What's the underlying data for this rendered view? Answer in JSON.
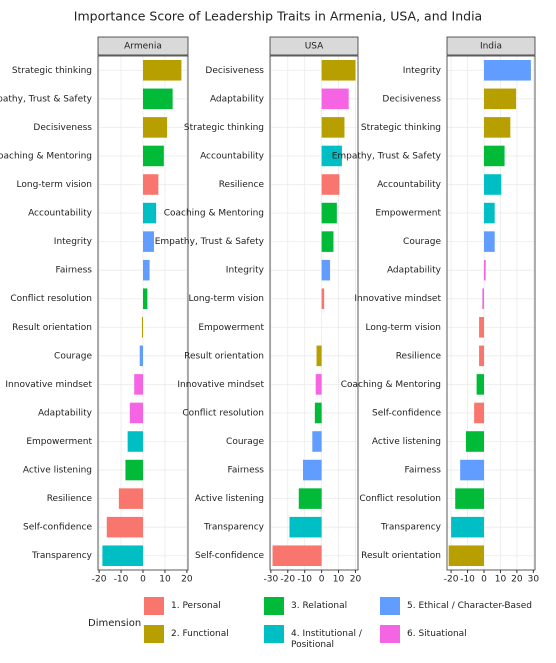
{
  "title": "Importance Score of Leadership Traits in Armenia, USA, and India",
  "legend": {
    "title": "Dimension",
    "entries": [
      {
        "name": "1. Personal",
        "color": "#F8766D"
      },
      {
        "name": "2. Functional",
        "color": "#B79F00"
      },
      {
        "name": "3. Relational",
        "color": "#00BA38"
      },
      {
        "name": "4. Institutional / Positional",
        "color": "#00BFC4"
      },
      {
        "name": "5. Ethical / Character-Based",
        "color": "#619CFF"
      },
      {
        "name": "6. Situational",
        "color": "#F564E3"
      }
    ]
  },
  "chart_data": [
    {
      "type": "bar",
      "orientation": "horizontal",
      "title": "Armenia",
      "grid": true,
      "categories": [
        "Strategic thinking",
        "Empathy, Trust & Safety",
        "Decisiveness",
        "Coaching & Mentoring",
        "Long-term vision",
        "Accountability",
        "Integrity",
        "Fairness",
        "Conflict resolution",
        "Result orientation",
        "Courage",
        "Innovative mindset",
        "Adaptability",
        "Empowerment",
        "Active listening",
        "Resilience",
        "Self-confidence",
        "Transparency"
      ],
      "values": [
        17.5,
        13.5,
        11,
        9.5,
        7,
        6,
        5,
        3,
        2,
        -0.5,
        -1.5,
        -4,
        -6,
        -7,
        -8,
        -11,
        -16.5,
        -18.5
      ],
      "colors": [
        "#B79F00",
        "#00BA38",
        "#B79F00",
        "#00BA38",
        "#F8766D",
        "#00BFC4",
        "#619CFF",
        "#619CFF",
        "#00BA38",
        "#B79F00",
        "#619CFF",
        "#F564E3",
        "#F564E3",
        "#00BFC4",
        "#00BA38",
        "#F8766D",
        "#F8766D",
        "#00BFC4"
      ],
      "xlim": [
        -20.5,
        20.5
      ],
      "xticks": [
        -20,
        -10,
        0,
        10,
        20
      ]
    },
    {
      "type": "bar",
      "orientation": "horizontal",
      "title": "USA",
      "grid": true,
      "categories": [
        "Decisiveness",
        "Adaptability",
        "Strategic thinking",
        "Accountability",
        "Resilience",
        "Coaching & Mentoring",
        "Empathy, Trust & Safety",
        "Integrity",
        "Long-term vision",
        "Empowerment",
        "Result orientation",
        "Innovative mindset",
        "Conflict resolution",
        "Courage",
        "Fairness",
        "Active listening",
        "Transparency",
        "Self-confidence"
      ],
      "values": [
        20,
        16,
        13.5,
        12,
        10.5,
        9,
        7,
        5,
        1.5,
        0,
        -3,
        -3.5,
        -4,
        -5.5,
        -11,
        -13.5,
        -19,
        -29
      ],
      "colors": [
        "#B79F00",
        "#F564E3",
        "#B79F00",
        "#00BFC4",
        "#F8766D",
        "#00BA38",
        "#00BA38",
        "#619CFF",
        "#F8766D",
        "#00BFC4",
        "#B79F00",
        "#F564E3",
        "#00BA38",
        "#619CFF",
        "#619CFF",
        "#00BA38",
        "#00BFC4",
        "#F8766D"
      ],
      "xlim": [
        -30.5,
        21.5
      ],
      "xticks": [
        -30,
        -20,
        -10,
        0,
        10,
        20
      ]
    },
    {
      "type": "bar",
      "orientation": "horizontal",
      "title": "India",
      "grid": true,
      "categories": [
        "Integrity",
        "Decisiveness",
        "Strategic thinking",
        "Empathy, Trust & Safety",
        "Accountability",
        "Empowerment",
        "Courage",
        "Adaptability",
        "Innovative mindset",
        "Long-term vision",
        "Resilience",
        "Coaching & Mentoring",
        "Self-confidence",
        "Active listening",
        "Fairness",
        "Conflict resolution",
        "Transparency",
        "Result orientation"
      ],
      "values": [
        28.5,
        19.5,
        16,
        12.5,
        10.5,
        6.5,
        6.5,
        1,
        -1,
        -3,
        -3,
        -4.5,
        -6,
        -11,
        -14.5,
        -17.5,
        -20,
        -21.5
      ],
      "colors": [
        "#619CFF",
        "#B79F00",
        "#B79F00",
        "#00BA38",
        "#00BFC4",
        "#00BFC4",
        "#619CFF",
        "#F564E3",
        "#F564E3",
        "#F8766D",
        "#F8766D",
        "#00BA38",
        "#F8766D",
        "#00BA38",
        "#619CFF",
        "#00BA38",
        "#00BFC4",
        "#B79F00"
      ],
      "xlim": [
        -22.5,
        31
      ],
      "xticks": [
        -20,
        -10,
        0,
        10,
        20,
        30
      ]
    }
  ]
}
